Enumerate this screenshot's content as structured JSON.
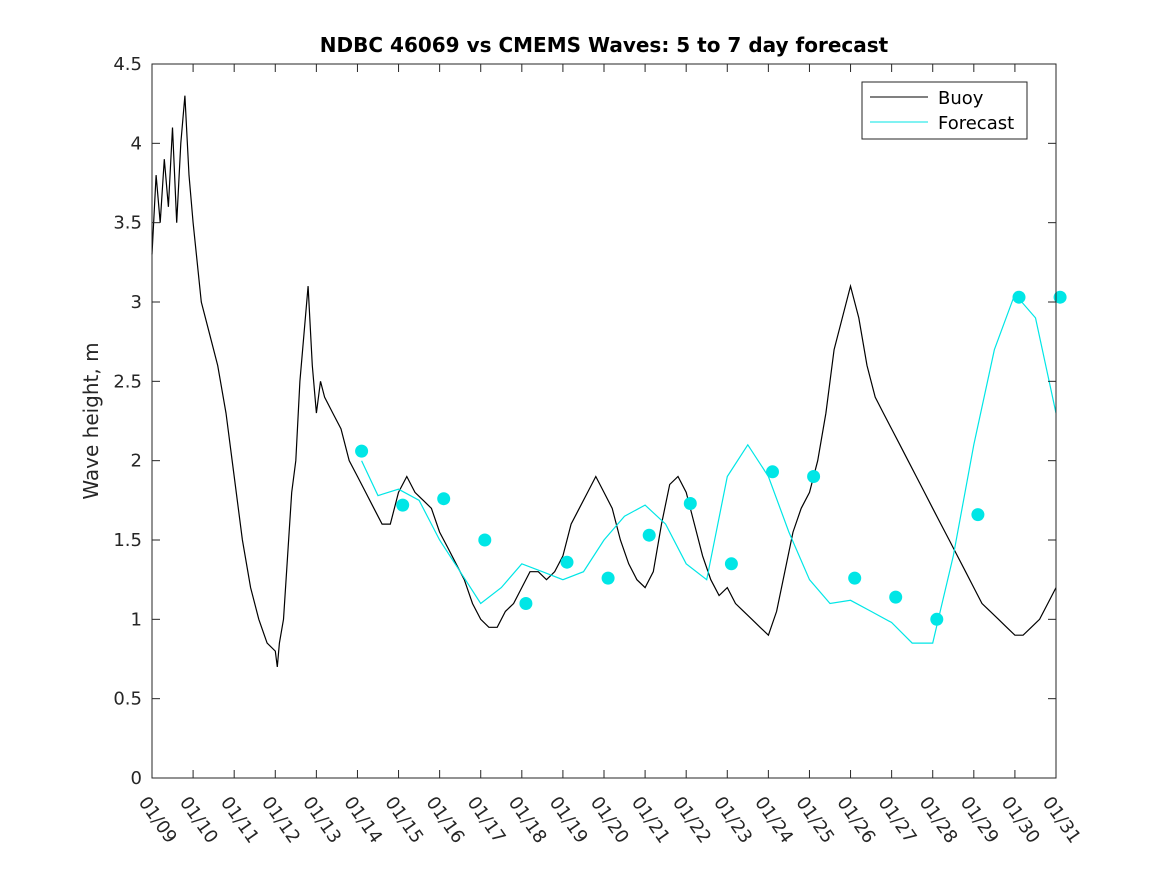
{
  "chart_data": {
    "type": "line",
    "title": "NDBC 46069 vs CMEMS Waves: 5 to 7 day forecast",
    "xlabel": "",
    "ylabel": "Wave height, m",
    "xlim": [
      "01/09",
      "01/31"
    ],
    "ylim": [
      0,
      4.5
    ],
    "x_tick_labels": [
      "01/09",
      "01/10",
      "01/11",
      "01/12",
      "01/13",
      "01/14",
      "01/15",
      "01/16",
      "01/17",
      "01/18",
      "01/19",
      "01/20",
      "01/21",
      "01/22",
      "01/23",
      "01/24",
      "01/25",
      "01/26",
      "01/27",
      "01/28",
      "01/29",
      "01/30",
      "01/31"
    ],
    "y_ticks": [
      0,
      0.5,
      1,
      1.5,
      2,
      2.5,
      3,
      3.5,
      4,
      4.5
    ],
    "y_tick_labels": [
      "0",
      "0.5",
      "1",
      "1.5",
      "2",
      "2.5",
      "3",
      "3.5",
      "4",
      "4.5"
    ],
    "x_unit": "days since 01/09",
    "grid": false,
    "legend_position": "top-right",
    "series": [
      {
        "name": "Buoy",
        "color": "#000000",
        "x": [
          0.0,
          0.1,
          0.2,
          0.3,
          0.4,
          0.5,
          0.6,
          0.7,
          0.8,
          0.9,
          1.0,
          1.2,
          1.4,
          1.6,
          1.8,
          2.0,
          2.2,
          2.4,
          2.6,
          2.8,
          3.0,
          3.05,
          3.1,
          3.2,
          3.3,
          3.4,
          3.5,
          3.6,
          3.7,
          3.8,
          3.9,
          4.0,
          4.1,
          4.2,
          4.4,
          4.6,
          4.8,
          5.0,
          5.2,
          5.4,
          5.6,
          5.8,
          6.0,
          6.2,
          6.4,
          6.6,
          6.8,
          7.0,
          7.2,
          7.4,
          7.6,
          7.8,
          8.0,
          8.2,
          8.4,
          8.6,
          8.8,
          9.0,
          9.2,
          9.4,
          9.6,
          9.8,
          10.0,
          10.2,
          10.4,
          10.6,
          10.8,
          11.0,
          11.2,
          11.4,
          11.6,
          11.8,
          12.0,
          12.2,
          12.4,
          12.6,
          12.8,
          13.0,
          13.2,
          13.4,
          13.6,
          13.8,
          14.0,
          14.2,
          14.4,
          14.6,
          14.8,
          15.0,
          15.2,
          15.4,
          15.6,
          15.8,
          16.0,
          16.2,
          16.4,
          16.6,
          16.8,
          17.0,
          17.2,
          17.4,
          17.6,
          17.8,
          18.0,
          18.2,
          18.4,
          18.6,
          18.8,
          19.0,
          19.2,
          19.4,
          19.6,
          19.8,
          20.0,
          20.2,
          20.4,
          20.6,
          20.8,
          21.0,
          21.2,
          21.4,
          21.6,
          21.8,
          22.0
        ],
        "y": [
          3.3,
          3.8,
          3.5,
          3.9,
          3.6,
          4.1,
          3.5,
          4.0,
          4.3,
          3.8,
          3.5,
          3.0,
          2.8,
          2.6,
          2.3,
          1.9,
          1.5,
          1.2,
          1.0,
          0.85,
          0.8,
          0.7,
          0.85,
          1.0,
          1.4,
          1.8,
          2.0,
          2.5,
          2.8,
          3.1,
          2.6,
          2.3,
          2.5,
          2.4,
          2.3,
          2.2,
          2.0,
          1.9,
          1.8,
          1.7,
          1.6,
          1.6,
          1.8,
          1.9,
          1.8,
          1.75,
          1.7,
          1.55,
          1.45,
          1.35,
          1.25,
          1.1,
          1.0,
          0.95,
          0.95,
          1.05,
          1.1,
          1.2,
          1.3,
          1.3,
          1.25,
          1.3,
          1.4,
          1.6,
          1.7,
          1.8,
          1.9,
          1.8,
          1.7,
          1.5,
          1.35,
          1.25,
          1.2,
          1.3,
          1.6,
          1.85,
          1.9,
          1.8,
          1.6,
          1.4,
          1.25,
          1.15,
          1.2,
          1.1,
          1.05,
          1.0,
          0.95,
          0.9,
          1.05,
          1.3,
          1.55,
          1.7,
          1.8,
          2.0,
          2.3,
          2.7,
          2.9,
          3.1,
          2.9,
          2.6,
          2.4,
          2.3,
          2.2,
          2.1,
          2.0,
          1.9,
          1.8,
          1.7,
          1.6,
          1.5,
          1.4,
          1.3,
          1.2,
          1.1,
          1.05,
          1.0,
          0.95,
          0.9,
          0.9,
          0.95,
          1.0,
          1.1,
          1.2
        ]
      },
      {
        "name": "Forecast",
        "color": "#00e6e6",
        "x": [
          5.1,
          5.5,
          6.0,
          6.5,
          7.0,
          7.5,
          8.0,
          8.5,
          9.0,
          9.5,
          10.0,
          10.5,
          11.0,
          11.5,
          12.0,
          12.5,
          13.0,
          13.5,
          14.0,
          14.5,
          15.0,
          15.5,
          16.0,
          16.5,
          17.0,
          17.5,
          18.0,
          18.5,
          19.0,
          19.5,
          20.0,
          20.5,
          21.0,
          21.5,
          22.0
        ],
        "y": [
          2.0,
          1.78,
          1.82,
          1.75,
          1.5,
          1.3,
          1.1,
          1.2,
          1.35,
          1.3,
          1.25,
          1.3,
          1.5,
          1.65,
          1.72,
          1.6,
          1.35,
          1.25,
          1.9,
          2.1,
          1.9,
          1.55,
          1.25,
          1.1,
          1.12,
          1.05,
          0.98,
          0.85,
          0.85,
          1.4,
          2.1,
          2.7,
          3.05,
          2.9,
          2.3
        ]
      }
    ],
    "markers": {
      "series": "Forecast",
      "x": [
        5.1,
        6.1,
        7.1,
        8.1,
        9.1,
        10.1,
        11.1,
        12.1,
        13.1,
        14.1,
        15.1,
        16.1,
        17.1,
        18.1,
        19.1,
        20.1,
        21.1,
        22.1
      ],
      "y": [
        2.06,
        1.72,
        1.76,
        1.5,
        1.1,
        1.36,
        1.26,
        1.53,
        1.73,
        1.35,
        1.93,
        1.9,
        1.26,
        1.14,
        1.0,
        1.66,
        3.03,
        3.03
      ]
    }
  },
  "legend": {
    "buoy_label": "Buoy",
    "forecast_label": "Forecast"
  }
}
